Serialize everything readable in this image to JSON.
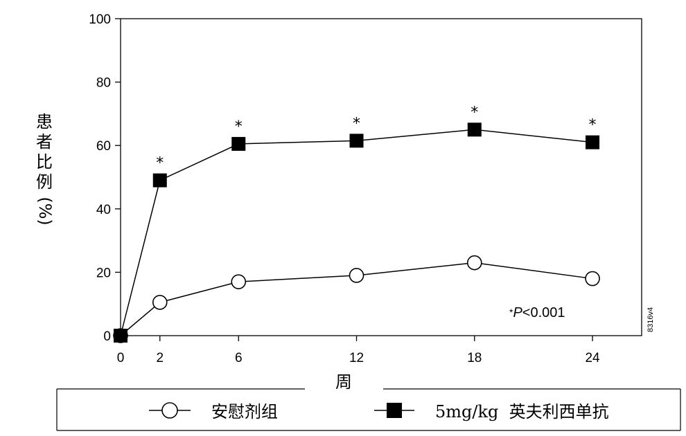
{
  "chart_data": {
    "type": "line",
    "xlabel": "周",
    "ylabel": "患者比例(%)",
    "ylabel_chars": [
      "患",
      "者",
      "比",
      "例"
    ],
    "ylabel_unit": "(%)",
    "x": [
      0,
      2,
      6,
      12,
      18,
      24
    ],
    "xticks": [
      0,
      2,
      6,
      12,
      18,
      24
    ],
    "yticks": [
      0,
      20,
      40,
      60,
      80,
      100
    ],
    "xlim": [
      0,
      26.5
    ],
    "ylim": [
      0,
      100
    ],
    "grid": false,
    "legend_position": "bottom",
    "series": [
      {
        "name": "安慰剂组",
        "marker": "open-circle",
        "color": "#000000",
        "values": [
          0,
          10.5,
          17,
          19,
          23,
          18
        ]
      },
      {
        "name": "5mg/kg  英夫利西单抗",
        "marker": "filled-square",
        "color": "#000000",
        "values": [
          0,
          49,
          60.5,
          61.5,
          65,
          61
        ]
      }
    ],
    "significance_marker": "*",
    "significant_x": [
      2,
      6,
      12,
      18,
      24
    ],
    "annotation": {
      "star": "*",
      "p": "P",
      "rest": "<0.001"
    },
    "figure_id": "8316v4"
  }
}
